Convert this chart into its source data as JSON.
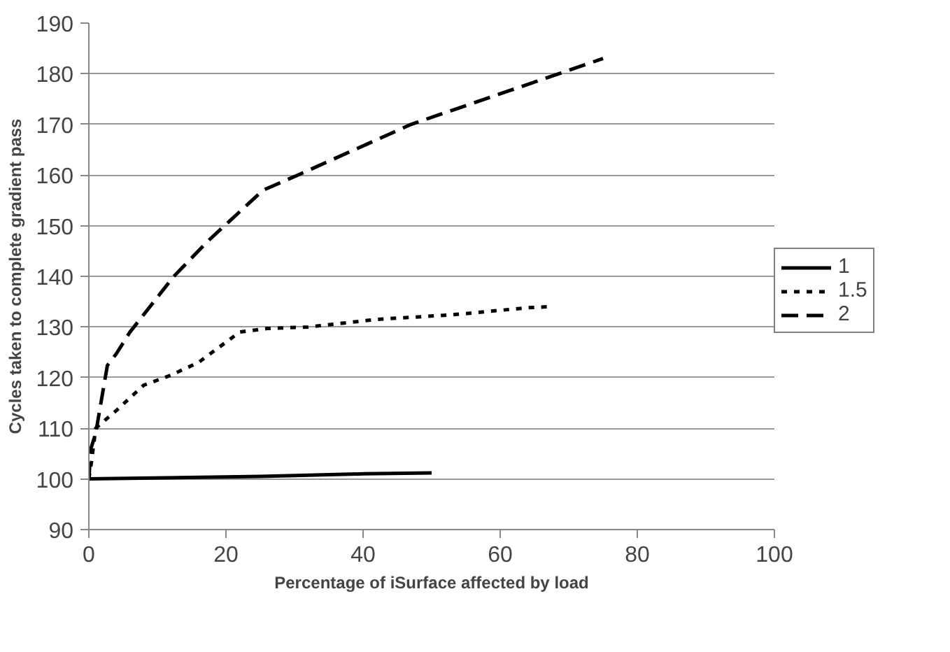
{
  "chart_data": {
    "type": "line",
    "xlabel": "Percentage of iSurface affected by load",
    "ylabel": "Cycles taken to complete gradient pass",
    "xlim": [
      0,
      100
    ],
    "xticks": [
      0,
      20,
      40,
      60,
      80,
      100
    ],
    "ylim": [
      90,
      190
    ],
    "yticks": [
      90,
      100,
      110,
      120,
      130,
      140,
      150,
      160,
      170,
      180,
      190
    ],
    "grid": "y",
    "legend": "right",
    "marker": "none",
    "series": [
      {
        "name": "1",
        "color": "#000000",
        "line_style": "solid",
        "x": [
          0,
          25,
          40,
          50
        ],
        "values": [
          100,
          100.5,
          101,
          101.2
        ]
      },
      {
        "name": "1.5",
        "color": "#000000",
        "line_style": "dotted",
        "x": [
          0,
          0.4,
          1,
          4,
          8,
          12,
          16,
          19,
          22,
          26,
          32,
          42,
          53,
          64,
          67
        ],
        "values": [
          100,
          103.5,
          110,
          113.5,
          118.5,
          120.5,
          123,
          126,
          129,
          129.7,
          130,
          131.5,
          132.4,
          133.8,
          134
        ]
      },
      {
        "name": "2",
        "color": "#000000",
        "line_style": "dashed",
        "x": [
          0,
          0.3,
          1,
          2.7,
          4,
          6,
          11,
          12.4,
          17.4,
          25.4,
          30.5,
          47,
          75
        ],
        "values": [
          100,
          106,
          109,
          122.4,
          124.7,
          129,
          137.6,
          140,
          147,
          157,
          160,
          170,
          183
        ]
      }
    ]
  }
}
